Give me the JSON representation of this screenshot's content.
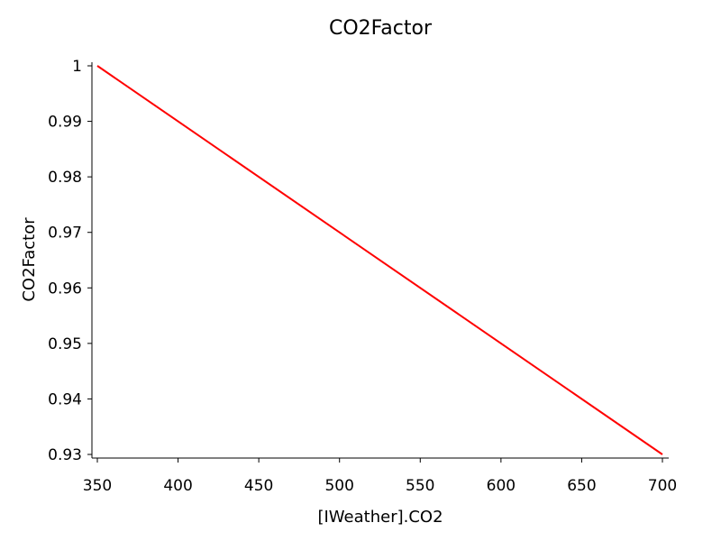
{
  "chart_data": {
    "type": "line",
    "title": "CO2Factor",
    "xlabel": "[IWeather].CO2",
    "ylabel": "CO2Factor",
    "xlim": [
      350,
      700
    ],
    "ylim": [
      0.93,
      1.0
    ],
    "x_ticks": [
      "350",
      "400",
      "450",
      "500",
      "550",
      "600",
      "650",
      "700"
    ],
    "y_ticks": [
      "0.93",
      "0.94",
      "0.95",
      "0.96",
      "0.97",
      "0.98",
      "0.99",
      "1"
    ],
    "grid": false,
    "legend": "none",
    "series": [
      {
        "color": "#ff0000",
        "x": [
          350,
          700
        ],
        "y": [
          1.0,
          0.93
        ]
      }
    ]
  }
}
